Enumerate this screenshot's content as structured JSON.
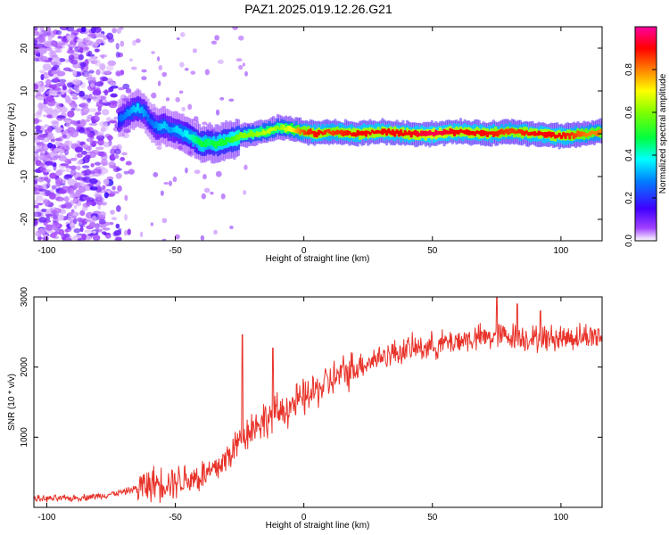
{
  "chart_data": [
    {
      "type": "heatmap",
      "title": "PAZ1.2025.019.12.26.G21",
      "xlabel": "Height of straight line (km)",
      "ylabel": "Frequency (Hz)",
      "xlim": [
        -105,
        116
      ],
      "ylim": [
        -25,
        25
      ],
      "xticks": [
        -100,
        -50,
        0,
        50,
        100
      ],
      "yticks": [
        -20,
        -10,
        0,
        10,
        20
      ],
      "colorbar": {
        "label": "Normalized spectral amplitude",
        "lim": [
          0,
          1
        ],
        "ticks": [
          "0.0",
          "0.2",
          "0.4",
          "0.6",
          "0.8"
        ],
        "colormap": [
          "#ffffff",
          "#8a00ff",
          "#0000ff",
          "#00ffff",
          "#00ff00",
          "#ffff00",
          "#ff8000",
          "#ff0000",
          "#ff00ff"
        ]
      },
      "ridge": {
        "x": [
          -72,
          -68,
          -65,
          -62,
          -60,
          -57,
          -55,
          -52,
          -50,
          -47,
          -45,
          -42,
          -40,
          -37,
          -35,
          -32,
          -30,
          -27,
          -25,
          -20,
          -15,
          -12,
          -10,
          -5,
          0,
          5,
          10,
          20,
          30,
          40,
          50,
          60,
          70,
          80,
          90,
          100,
          110,
          116
        ],
        "y": [
          3.5,
          5,
          6,
          5,
          3,
          1.5,
          2,
          1,
          1,
          0,
          -0.5,
          -1.5,
          -2.5,
          -2,
          -2.5,
          -2,
          -1.5,
          -1.5,
          -0.5,
          0,
          0.5,
          1,
          1.5,
          1,
          0.5,
          0,
          0.5,
          0,
          0.5,
          0,
          0,
          0.5,
          0,
          0.5,
          0,
          -0.5,
          0,
          0.5
        ],
        "amplitude": [
          0.25,
          0.3,
          0.35,
          0.3,
          0.25,
          0.3,
          0.35,
          0.3,
          0.35,
          0.35,
          0.4,
          0.45,
          0.5,
          0.45,
          0.5,
          0.5,
          0.5,
          0.55,
          0.6,
          0.6,
          0.65,
          0.65,
          0.6,
          0.7,
          0.85,
          0.9,
          0.85,
          0.9,
          0.9,
          0.9,
          0.95,
          0.9,
          0.9,
          0.85,
          0.9,
          0.9,
          0.8,
          0.8
        ]
      },
      "noise_region_x": [
        -105,
        -65
      ]
    },
    {
      "type": "line",
      "xlabel": "Height of straight line (km)",
      "ylabel": "SNR (10 * v/v)",
      "xlim": [
        -105,
        116
      ],
      "ylim": [
        0,
        3000
      ],
      "xticks": [
        -100,
        -50,
        0,
        50,
        100
      ],
      "yticks": [
        1000,
        2000,
        3000
      ],
      "color": "#e8332a",
      "trend": {
        "x": [
          -105,
          -90,
          -80,
          -70,
          -60,
          -50,
          -40,
          -35,
          -30,
          -25,
          -20,
          -10,
          0,
          10,
          20,
          30,
          40,
          50,
          60,
          70,
          80,
          90,
          100,
          116
        ],
        "y": [
          120,
          130,
          160,
          220,
          330,
          380,
          440,
          520,
          700,
          950,
          1150,
          1350,
          1550,
          1800,
          2000,
          2150,
          2250,
          2300,
          2380,
          2420,
          2450,
          2400,
          2420,
          2450
        ]
      },
      "spikes": [
        {
          "x": -24,
          "y": 2460
        },
        {
          "x": -12,
          "y": 2270
        },
        {
          "x": 75,
          "y": 3000
        },
        {
          "x": 83,
          "y": 2900
        },
        {
          "x": 92,
          "y": 2800
        }
      ]
    }
  ]
}
